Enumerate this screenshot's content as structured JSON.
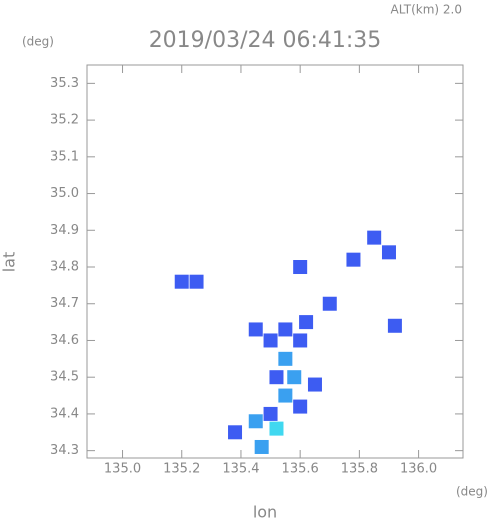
{
  "chart_data": {
    "type": "scatter",
    "title": "2019/03/24 06:41:35",
    "altitude_label": "ALT(km) 2.0",
    "x_label": "lon",
    "y_label": "lat",
    "x_unit": "(deg)",
    "y_unit": "(deg)",
    "xlim": [
      134.88,
      136.15
    ],
    "ylim": [
      34.28,
      35.35
    ],
    "xticks": [
      {
        "value": 135.0,
        "label": "135.0"
      },
      135.2,
      135.4,
      135.6,
      135.8,
      {
        "value": 136.0,
        "label": "136.0"
      }
    ],
    "yticks": [
      34.3,
      34.4,
      34.5,
      34.6,
      34.7,
      34.8,
      34.9,
      {
        "value": 35.0,
        "label": "35.0"
      },
      35.1,
      35.2,
      35.3
    ],
    "x": [
      135.55,
      135.5,
      135.6,
      135.55,
      135.52,
      135.58,
      135.65,
      135.55,
      135.5,
      135.6,
      135.45,
      135.38,
      135.52,
      135.47,
      135.62,
      135.7,
      135.85,
      135.9,
      135.92,
      135.2,
      135.25,
      135.6,
      135.78,
      135.45
    ],
    "values": [
      34.63,
      34.6,
      34.6,
      34.55,
      34.5,
      34.5,
      34.48,
      34.45,
      34.4,
      34.42,
      34.38,
      34.35,
      34.36,
      34.31,
      34.65,
      34.7,
      34.88,
      34.84,
      34.64,
      34.76,
      34.76,
      34.8,
      34.82,
      34.63
    ],
    "point_colors": [
      "#3d5cf2",
      "#3d5cf2",
      "#3d5cf2",
      "#3aa0f0",
      "#3d5cf2",
      "#3aa0f0",
      "#3d5cf2",
      "#3aa0f0",
      "#3d5cf2",
      "#3d5cf2",
      "#3aa0f0",
      "#3d5cf2",
      "#40d8f0",
      "#3aa0f0",
      "#3d5cf2",
      "#3d5cf2",
      "#3d5cf2",
      "#3d5cf2",
      "#3d5cf2",
      "#3d5cf2",
      "#3d5cf2",
      "#3d5cf2",
      "#3d5cf2",
      "#3d5cf2"
    ],
    "tick_color": "#999"
  }
}
